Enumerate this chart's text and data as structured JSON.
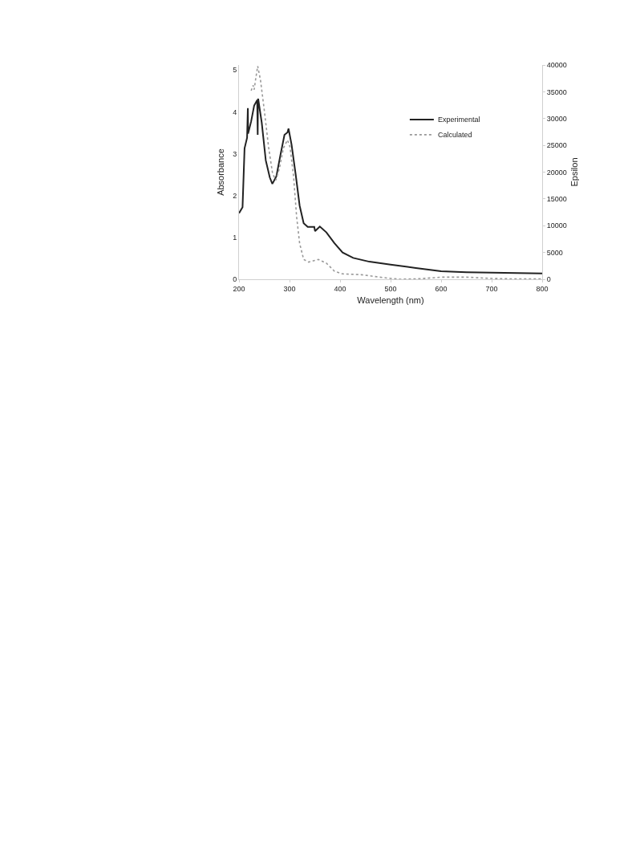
{
  "chart_data": {
    "type": "line",
    "xlabel": "Wavelength (nm)",
    "ylabel": "Absorbance",
    "y2label": "Epsilon",
    "xlim": [
      200,
      800
    ],
    "xticks": [
      200,
      300,
      400,
      500,
      600,
      700,
      800
    ],
    "ylim": [
      0,
      5.12
    ],
    "yticks": [
      0,
      1,
      2,
      3,
      4,
      5
    ],
    "y2lim": [
      0,
      40000
    ],
    "y2ticks": [
      0,
      5000,
      10000,
      15000,
      20000,
      25000,
      30000,
      35000,
      40000
    ],
    "grid": false,
    "legend": "top right",
    "marker": "none",
    "series": [
      {
        "name": "Experimental",
        "color": "#222222",
        "line_style": "solid",
        "x": [
          200,
          207,
          211,
          216,
          217.5,
          218,
          224,
          230,
          236,
          237,
          237.5,
          238,
          245,
          253,
          261,
          266,
          274,
          282,
          290,
          296,
          298,
          304,
          312,
          320,
          328,
          336,
          349,
          350.5,
          360,
          373,
          389,
          405,
          426,
          458,
          500,
          550,
          600,
          650,
          700,
          750,
          800
        ],
        "values": [
          1.58,
          1.72,
          3.13,
          3.38,
          4.09,
          3.48,
          3.77,
          4.15,
          4.28,
          3.45,
          4.3,
          4.31,
          3.74,
          2.84,
          2.43,
          2.28,
          2.46,
          2.97,
          3.45,
          3.51,
          3.6,
          3.22,
          2.52,
          1.76,
          1.34,
          1.25,
          1.25,
          1.15,
          1.26,
          1.12,
          0.86,
          0.64,
          0.51,
          0.42,
          0.35,
          0.27,
          0.19,
          0.17,
          0.16,
          0.15,
          0.14
        ]
      },
      {
        "name": "Calculated",
        "color": "#999999",
        "line_style": "dotted",
        "axis": "y2",
        "x": [
          224,
          228,
          230,
          233.5,
          237,
          242.5,
          250.5,
          258.5,
          266.5,
          273,
          280,
          288,
          296,
          301,
          308,
          314,
          320,
          328,
          338,
          357,
          373,
          389,
          405,
          442,
          470,
          500,
          520,
          560,
          600,
          650,
          700,
          750,
          800
        ],
        "values": [
          35200,
          36200,
          35400,
          37700,
          39800,
          37200,
          31200,
          24700,
          19700,
          18500,
          20700,
          24500,
          26000,
          24700,
          19200,
          11700,
          6700,
          3700,
          3200,
          3700,
          3000,
          1500,
          1000,
          850,
          500,
          150,
          0,
          100,
          400,
          400,
          150,
          50,
          50
        ]
      }
    ]
  }
}
